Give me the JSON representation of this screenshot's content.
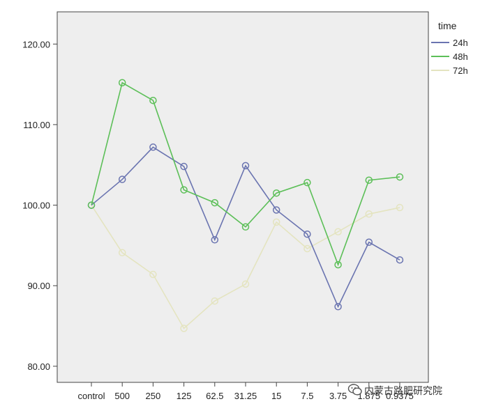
{
  "chart_data": {
    "type": "line",
    "title": "",
    "xlabel": "",
    "ylabel": "",
    "categories": [
      "control",
      "500",
      "250",
      "125",
      "62.5",
      "31.25",
      "15",
      "7.5",
      "3.75",
      "1.875",
      "0.9375"
    ],
    "ylim": [
      78,
      124
    ],
    "yticks": [
      80,
      90,
      100,
      110,
      120
    ],
    "ytick_labels": [
      "80.00",
      "90.00",
      "100.00",
      "110.00",
      "120.00"
    ],
    "grid": false,
    "legend_title": "time",
    "legend_position": "top-right",
    "marker": "open-circle",
    "series": [
      {
        "name": "24h",
        "color": "#6a74b0",
        "values": [
          100.0,
          103.2,
          107.2,
          104.8,
          95.7,
          104.9,
          99.4,
          96.4,
          87.4,
          95.4,
          93.2
        ]
      },
      {
        "name": "48h",
        "color": "#5cbf58",
        "values": [
          100.0,
          115.2,
          113.0,
          101.9,
          100.3,
          97.3,
          101.5,
          102.8,
          92.6,
          103.1,
          103.5
        ]
      },
      {
        "name": "72h",
        "color": "#e4e4c0",
        "values": [
          100.0,
          94.1,
          91.4,
          84.7,
          88.1,
          90.2,
          97.9,
          94.6,
          96.7,
          98.9,
          99.7
        ]
      }
    ]
  },
  "watermark": {
    "text": "内蒙古路肥研究院",
    "icon": "wechat-icon"
  }
}
